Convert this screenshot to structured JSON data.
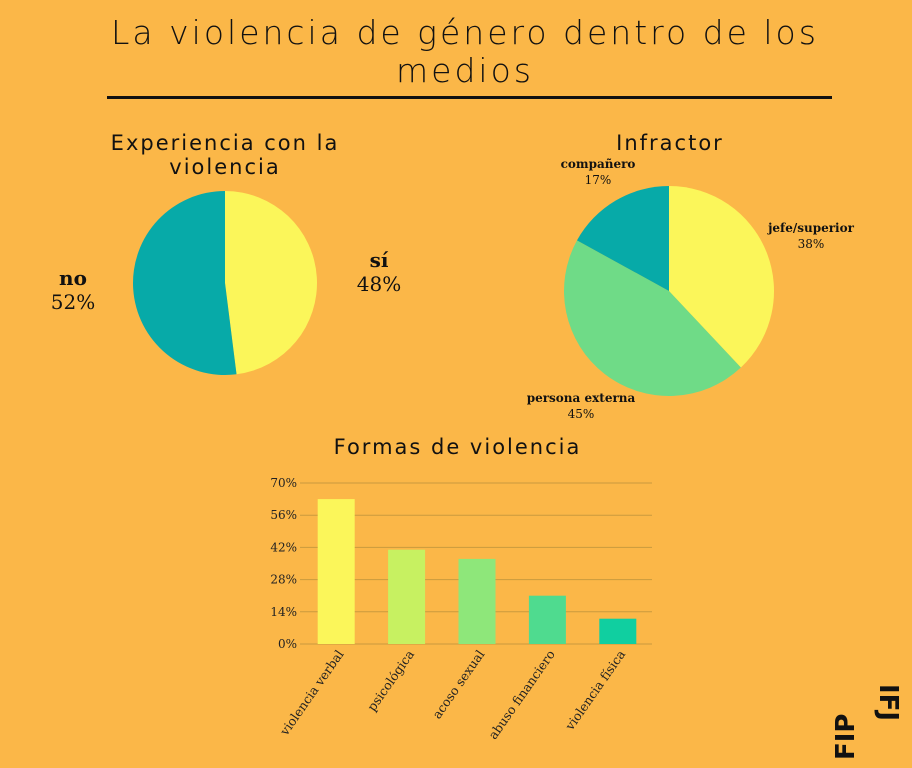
{
  "title": "La violencia de género dentro de los medios",
  "chart_data": [
    {
      "type": "pie",
      "title": "Experiencia con la violencia",
      "slices": [
        {
          "label": "sí",
          "value": 48,
          "display": "48%",
          "color": "#FBF65A"
        },
        {
          "label": "no",
          "value": 52,
          "display": "52%",
          "color": "#07AAA8"
        }
      ]
    },
    {
      "type": "pie",
      "title": "Infractor",
      "slices": [
        {
          "label": "jefe/superior",
          "value": 38,
          "display": "38%",
          "color": "#FBF65A"
        },
        {
          "label": "persona externa",
          "value": 45,
          "display": "45%",
          "color": "#6FDB87"
        },
        {
          "label": "compañero",
          "value": 17,
          "display": "17%",
          "color": "#07AAA8"
        }
      ]
    },
    {
      "type": "bar",
      "title": "Formas de violencia",
      "categories": [
        "violencia verbal",
        "psicológica",
        "acoso sexual",
        "abuso financiero",
        "violencia física"
      ],
      "values": [
        63,
        41,
        37,
        21,
        11
      ],
      "colors": [
        "#FBF65A",
        "#C7F161",
        "#8EE77A",
        "#4FDB8F",
        "#10CFA0"
      ],
      "ylim": [
        0,
        70
      ],
      "yticks": [
        "0%",
        "14%",
        "28%",
        "42%",
        "56%",
        "70%"
      ],
      "grid": true
    }
  ],
  "logo": {
    "text_top": "IFJ",
    "text_bottom": "FIP",
    "accent": "#E8352B"
  }
}
